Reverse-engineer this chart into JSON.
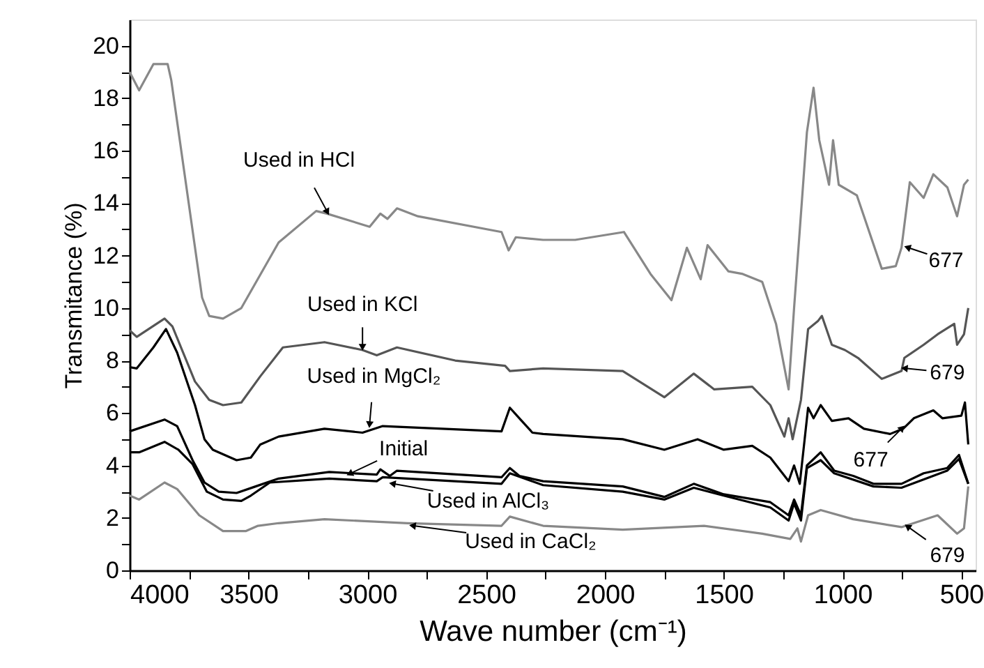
{
  "chart_data": {
    "type": "line",
    "xlabel": "Wave number (cm⁻¹)",
    "ylabel": "Transmitance (%)",
    "xlim": [
      4000,
      440
    ],
    "ylim": [
      0,
      21
    ],
    "xticks": [
      4000,
      {
        "value": 3750,
        "label": null
      },
      3500,
      {
        "value": 3250,
        "label": null
      },
      3000,
      {
        "value": 2750,
        "label": null
      },
      2500,
      {
        "value": 2250,
        "label": null
      },
      2000,
      {
        "value": 1750,
        "label": null
      },
      1500,
      {
        "value": 1250,
        "label": null
      },
      1000,
      {
        "value": 750,
        "label": null
      },
      500
    ],
    "yticks": [
      0,
      {
        "value": 1,
        "label": null
      },
      2,
      {
        "value": 3,
        "label": null
      },
      4,
      {
        "value": 5,
        "label": null
      },
      6,
      {
        "value": 7,
        "label": null
      },
      8,
      {
        "value": 9,
        "label": null
      },
      10,
      {
        "value": 11,
        "label": null
      },
      12,
      {
        "value": 13,
        "label": null
      },
      14,
      {
        "value": 15,
        "label": null
      },
      16,
      {
        "value": 17,
        "label": null
      },
      18,
      {
        "value": 19,
        "label": null
      },
      20
    ],
    "grid": false,
    "legend": false,
    "line_style": "solid",
    "marker": "none",
    "series": [
      {
        "color": "#888888",
        "x": [
          4000,
          3960,
          3900,
          3840,
          3825,
          3695,
          3665,
          3607,
          3530,
          3373,
          3215,
          3170,
          2990,
          2945,
          2915,
          2875,
          2787,
          2435,
          2405,
          2375,
          2260,
          2125,
          1920,
          1808,
          1720,
          1655,
          1597,
          1568,
          1480,
          1420,
          1338,
          1280,
          1227,
          1204,
          1150,
          1122,
          1098,
          1057,
          1040,
          1016,
          940,
          835,
          776,
          752,
          717,
          659,
          618,
          559,
          518,
          489,
          471
        ],
        "values": [
          19.0,
          18.3,
          19.3,
          19.3,
          18.7,
          10.4,
          9.7,
          9.6,
          10.0,
          12.5,
          13.7,
          13.6,
          13.1,
          13.6,
          13.4,
          13.8,
          13.5,
          12.9,
          12.2,
          12.7,
          12.6,
          12.6,
          12.9,
          11.3,
          10.3,
          12.3,
          11.1,
          12.4,
          11.4,
          11.3,
          11.0,
          9.4,
          6.9,
          10.0,
          16.7,
          18.4,
          16.4,
          14.7,
          16.4,
          14.7,
          14.3,
          11.5,
          11.6,
          12.3,
          14.8,
          14.2,
          15.1,
          14.6,
          13.5,
          14.7,
          14.9
        ]
      },
      {
        "color": "#555555",
        "x": [
          4000,
          3970,
          3853,
          3820,
          3725,
          3665,
          3607,
          3530,
          3450,
          3355,
          3180,
          3020,
          2960,
          2875,
          2630,
          2420,
          2400,
          2260,
          1925,
          1750,
          1626,
          1540,
          1380,
          1304,
          1245,
          1227,
          1210,
          1175,
          1145,
          1104,
          1087,
          1045,
          990,
          935,
          835,
          752,
          740,
          659,
          600,
          530,
          518,
          489,
          471
        ],
        "values": [
          9.15,
          8.9,
          9.6,
          9.3,
          7.2,
          6.5,
          6.3,
          6.4,
          7.4,
          8.5,
          8.7,
          8.4,
          8.2,
          8.5,
          8.0,
          7.8,
          7.6,
          7.7,
          7.6,
          6.6,
          7.5,
          6.9,
          7.0,
          6.3,
          5.1,
          5.8,
          5.0,
          6.5,
          9.2,
          9.5,
          9.7,
          8.6,
          8.4,
          8.1,
          7.3,
          7.6,
          8.1,
          8.6,
          9.0,
          9.4,
          8.6,
          9.0,
          10.0
        ]
      },
      {
        "color": "#000000",
        "x": [
          4000,
          3970,
          3900,
          3847,
          3800,
          3725,
          3685,
          3650,
          3550,
          3490,
          3450,
          3373,
          3180,
          3020,
          2935,
          2435,
          2400,
          2360,
          2305,
          2260,
          1925,
          1750,
          1610,
          1500,
          1380,
          1304,
          1227,
          1204,
          1180,
          1145,
          1122,
          1092,
          1045,
          975,
          910,
          800,
          745,
          700,
          618,
          580,
          500,
          485,
          471
        ],
        "values": [
          7.75,
          7.7,
          8.5,
          9.2,
          8.3,
          6.3,
          5.0,
          4.6,
          4.2,
          4.3,
          4.8,
          5.1,
          5.4,
          5.25,
          5.5,
          5.3,
          6.2,
          5.8,
          5.25,
          5.2,
          5.0,
          4.6,
          5.0,
          4.6,
          4.75,
          4.3,
          3.4,
          4.0,
          3.3,
          6.2,
          5.8,
          6.3,
          5.7,
          5.8,
          5.4,
          5.2,
          5.4,
          5.8,
          6.1,
          5.8,
          5.9,
          6.4,
          4.8
        ]
      },
      {
        "color": "#000000",
        "x": [
          4000,
          3853,
          3800,
          3735,
          3685,
          3625,
          3550,
          3470,
          3373,
          3160,
          2960,
          2945,
          2905,
          2875,
          2435,
          2400,
          2360,
          2260,
          1925,
          1750,
          1626,
          1500,
          1304,
          1227,
          1204,
          1175,
          1150,
          1092,
          1035,
          955,
          870,
          752,
          659,
          560,
          510,
          471
        ],
        "values": [
          5.3,
          5.75,
          5.5,
          4.2,
          3.35,
          3.0,
          2.95,
          3.2,
          3.5,
          3.75,
          3.65,
          3.85,
          3.6,
          3.8,
          3.55,
          3.9,
          3.6,
          3.4,
          3.2,
          2.8,
          3.3,
          2.9,
          2.6,
          2.1,
          2.7,
          2.1,
          4.0,
          4.5,
          3.8,
          3.6,
          3.3,
          3.3,
          3.7,
          3.9,
          4.4,
          3.3
        ]
      },
      {
        "color": "#000000",
        "x": [
          4000,
          3960,
          3853,
          3795,
          3735,
          3675,
          3607,
          3530,
          3490,
          3410,
          3160,
          2960,
          2935,
          2435,
          2400,
          2260,
          1925,
          1750,
          1626,
          1500,
          1304,
          1227,
          1204,
          1175,
          1150,
          1092,
          1035,
          870,
          752,
          560,
          510,
          471
        ],
        "values": [
          4.5,
          4.5,
          4.9,
          4.6,
          4.05,
          3.0,
          2.7,
          2.65,
          2.85,
          3.35,
          3.5,
          3.4,
          3.55,
          3.3,
          3.7,
          3.25,
          3.0,
          2.7,
          3.15,
          2.85,
          2.4,
          1.9,
          2.55,
          1.9,
          3.9,
          4.2,
          3.7,
          3.2,
          3.15,
          3.8,
          4.25,
          3.3
        ]
      },
      {
        "color": "#888888",
        "x": [
          4000,
          3960,
          3853,
          3800,
          3707,
          3607,
          3510,
          3460,
          3373,
          3180,
          2830,
          2435,
          2400,
          2260,
          1925,
          1583,
          1338,
          1220,
          1190,
          1175,
          1145,
          1092,
          955,
          752,
          600,
          518,
          489,
          471
        ],
        "values": [
          2.85,
          2.7,
          3.35,
          3.1,
          2.1,
          1.5,
          1.5,
          1.7,
          1.8,
          1.95,
          1.8,
          1.7,
          2.05,
          1.7,
          1.55,
          1.7,
          1.4,
          1.2,
          1.6,
          1.1,
          2.1,
          2.3,
          1.95,
          1.65,
          2.1,
          1.4,
          1.6,
          3.2
        ]
      }
    ],
    "annotations": [
      {
        "text": "Used in HCl",
        "x": 3170,
        "y": 13.7
      },
      {
        "text": "Used in KCl",
        "x": 3020,
        "y": 8.55
      },
      {
        "text": "Used in MgCl₂",
        "x": 2990,
        "y": 5.6
      },
      {
        "text": "Initial",
        "x": 3070,
        "y": 3.7
      },
      {
        "text": "Used in AlCl₃",
        "x": 2890,
        "y": 3.3
      },
      {
        "text": "Used in CaCl₂",
        "x": 2805,
        "y": 1.7
      },
      {
        "text": "677",
        "x": 723,
        "y": 12.3
      },
      {
        "text": "679",
        "x": 735,
        "y": 7.7
      },
      {
        "text": "677",
        "x": 752,
        "y": 5.4
      },
      {
        "text": "679",
        "x": 723,
        "y": 1.65
      }
    ]
  }
}
